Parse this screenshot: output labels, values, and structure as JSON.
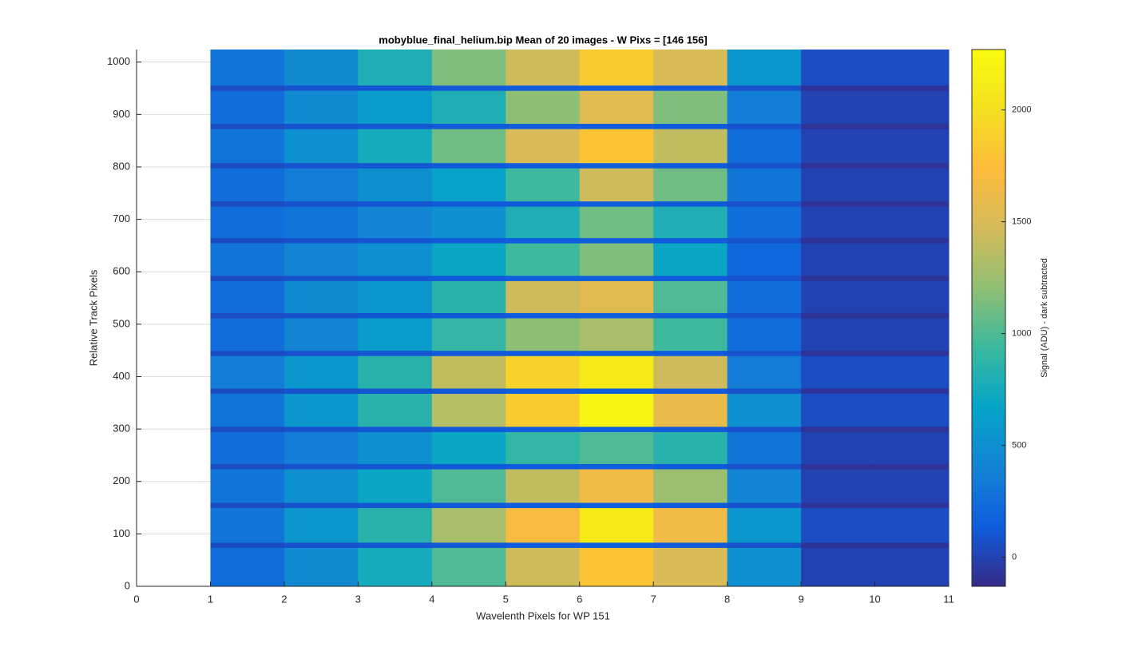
{
  "chart_data": {
    "type": "heatmap",
    "title": "mobyblue_final_helium.bip  Mean of 20 images - W Pixs = [146  156]",
    "x_label": "Wavelenth Pixels for WP 151",
    "y_label": "Relative Track Pixels",
    "colorbar_label": "Signal (ADU) - dark subtracted",
    "xlim": [
      0,
      11
    ],
    "ylim": [
      0,
      1024
    ],
    "xticks": [
      0,
      1,
      2,
      3,
      4,
      5,
      6,
      7,
      8,
      9,
      10,
      11
    ],
    "yticks": [
      0,
      100,
      200,
      300,
      400,
      500,
      600,
      700,
      800,
      900,
      1000
    ],
    "grid": true,
    "clim": [
      -130,
      2270
    ],
    "cticks": [
      0,
      500,
      1000,
      1500,
      2000
    ],
    "colormap": [
      "#352a87",
      "#0f5cdd",
      "#1384d4",
      "#05a4c8",
      "#3bb99f",
      "#90bf73",
      "#d4bb5a",
      "#fdbb3c",
      "#f4e020",
      "#f9fb0e"
    ],
    "x_edges": [
      1,
      2,
      3,
      4,
      5,
      6,
      7,
      8,
      9,
      10,
      11
    ],
    "y_edges": [
      0,
      74,
      84,
      150,
      160,
      224,
      234,
      295,
      305,
      368,
      378,
      440,
      450,
      512,
      522,
      583,
      593,
      655,
      665,
      725,
      735,
      798,
      808,
      873,
      883,
      946,
      956,
      1024
    ],
    "z": [
      [
        250,
        450,
        750,
        1000,
        1450,
        1800,
        1500,
        500,
        0,
        0
      ],
      [
        50,
        80,
        100,
        120,
        140,
        150,
        130,
        80,
        -80,
        -80
      ],
      [
        300,
        550,
        850,
        1300,
        1700,
        2100,
        1650,
        550,
        50,
        50
      ],
      [
        50,
        80,
        100,
        120,
        140,
        150,
        130,
        80,
        -80,
        -80
      ],
      [
        300,
        500,
        700,
        1000,
        1400,
        1650,
        1250,
        400,
        0,
        0
      ],
      [
        50,
        80,
        100,
        120,
        140,
        150,
        130,
        80,
        -80,
        -80
      ],
      [
        250,
        350,
        500,
        700,
        900,
        1000,
        850,
        300,
        0,
        0
      ],
      [
        50,
        80,
        100,
        120,
        140,
        150,
        130,
        80,
        -80,
        -80
      ],
      [
        300,
        550,
        850,
        1350,
        1850,
        2200,
        1600,
        500,
        50,
        50
      ],
      [
        50,
        80,
        100,
        120,
        140,
        150,
        130,
        80,
        -80,
        -80
      ],
      [
        350,
        550,
        850,
        1400,
        1900,
        2100,
        1450,
        350,
        50,
        50
      ],
      [
        50,
        80,
        100,
        120,
        140,
        150,
        130,
        80,
        -80,
        -80
      ],
      [
        250,
        400,
        600,
        900,
        1200,
        1300,
        950,
        250,
        0,
        0
      ],
      [
        50,
        80,
        100,
        120,
        140,
        150,
        130,
        80,
        -80,
        -80
      ],
      [
        250,
        450,
        550,
        850,
        1450,
        1550,
        1000,
        250,
        0,
        0
      ],
      [
        50,
        80,
        100,
        120,
        140,
        150,
        130,
        80,
        -80,
        -80
      ],
      [
        300,
        400,
        500,
        700,
        950,
        1150,
        700,
        200,
        0,
        0
      ],
      [
        50,
        80,
        100,
        120,
        140,
        150,
        130,
        80,
        -80,
        -80
      ],
      [
        250,
        300,
        400,
        500,
        800,
        1100,
        800,
        250,
        0,
        0
      ],
      [
        50,
        80,
        100,
        120,
        140,
        150,
        130,
        80,
        -80,
        -80
      ],
      [
        250,
        350,
        500,
        650,
        950,
        1450,
        1100,
        300,
        0,
        0
      ],
      [
        50,
        80,
        100,
        120,
        140,
        150,
        130,
        80,
        -80,
        -80
      ],
      [
        300,
        500,
        750,
        1100,
        1500,
        1800,
        1400,
        250,
        0,
        0
      ],
      [
        50,
        80,
        100,
        120,
        140,
        150,
        130,
        80,
        -80,
        -80
      ],
      [
        250,
        450,
        600,
        800,
        1200,
        1550,
        1150,
        350,
        0,
        0
      ],
      [
        50,
        80,
        100,
        120,
        140,
        150,
        130,
        80,
        -80,
        -80
      ],
      [
        300,
        450,
        800,
        1150,
        1450,
        1850,
        1500,
        550,
        50,
        50
      ]
    ]
  }
}
